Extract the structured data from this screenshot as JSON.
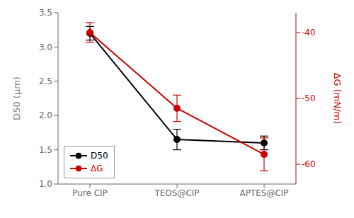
{
  "chart_data": {
    "type": "line",
    "categories": [
      "Pure CIP",
      "TEOS@CIP",
      "APTES@CIP"
    ],
    "series": [
      {
        "name": "D50",
        "color": "#000000",
        "values": [
          3.2,
          1.65,
          1.6
        ],
        "errors": [
          0.1,
          0.15,
          0.1
        ],
        "marker": "circle"
      },
      {
        "name": "ΔG",
        "color": "#cc0000",
        "values": [
          -40.0,
          -51.5,
          -58.5
        ],
        "errors": [
          1.5,
          2.0,
          2.5
        ],
        "marker": "circle",
        "axis": "y2"
      }
    ],
    "ylabel": "D50 (μm)",
    "y2label": "ΔG (mN/m)",
    "ylim": [
      1.0,
      3.5
    ],
    "yticks": [
      {
        "value": 1.0,
        "label": "1.0"
      },
      1.5,
      {
        "value": 2.0,
        "label": "2.0"
      },
      2.5,
      {
        "value": 3.0,
        "label": "3.0"
      },
      3.5
    ],
    "y2lim": [
      -63,
      -37
    ],
    "y2ticks": [
      -60,
      -50,
      -40
    ],
    "legend": "lower left",
    "grid": false
  }
}
